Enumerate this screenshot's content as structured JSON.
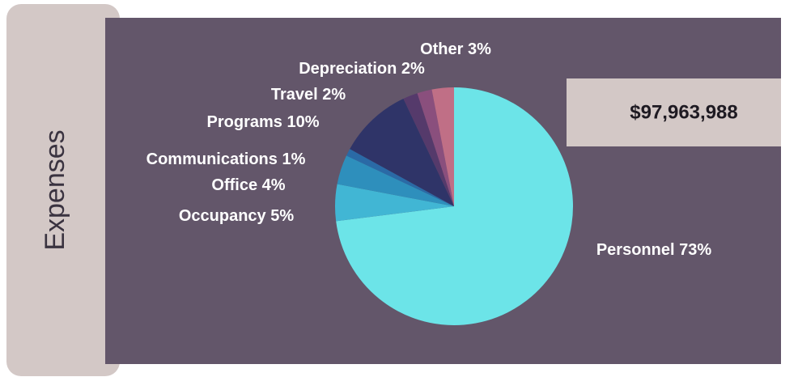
{
  "chart_data": {
    "type": "pie",
    "title": "Expenses",
    "annotation": "$97,963,988",
    "categories": [
      "Personnel",
      "Occupancy",
      "Office",
      "Communications",
      "Programs",
      "Travel",
      "Depreciation",
      "Other"
    ],
    "values": [
      73,
      5,
      4,
      1,
      10,
      2,
      2,
      3
    ],
    "value_labels": [
      "73%",
      "5%",
      "4%",
      "1%",
      "10%",
      "2%",
      "2%",
      "3%"
    ],
    "colors": [
      "#6ce4e8",
      "#41b6d4",
      "#2e8fbc",
      "#2a6aa6",
      "#2f3468",
      "#553a6b",
      "#8a4f7d",
      "#c06f86"
    ]
  }
}
